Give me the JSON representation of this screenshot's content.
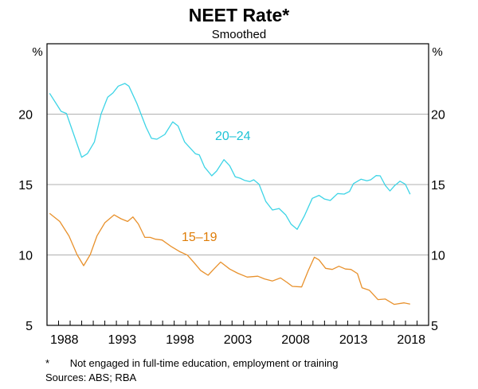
{
  "chart_data": {
    "type": "line",
    "title": "NEET Rate*",
    "subtitle": "Smoothed",
    "ylabel_left": "%",
    "ylabel_right": "%",
    "xlim": [
      1987,
      2020
    ],
    "ylim": [
      5,
      25
    ],
    "yticks": [
      5,
      10,
      15,
      20
    ],
    "xticks": [
      "1988",
      "1993",
      "1998",
      "2003",
      "2008",
      "2013",
      "2018"
    ],
    "grid": true,
    "series": [
      {
        "name": "20–24",
        "color": "#3dd4e6",
        "label_color": "#1fc3d6",
        "points": [
          [
            1987.23,
            21.48
          ],
          [
            1988.22,
            20.2
          ],
          [
            1988.68,
            20.05
          ],
          [
            1989.25,
            18.7
          ],
          [
            1990.0,
            16.94
          ],
          [
            1990.5,
            17.2
          ],
          [
            1991.1,
            18.03
          ],
          [
            1991.67,
            20.0
          ],
          [
            1992.24,
            21.2
          ],
          [
            1992.7,
            21.5
          ],
          [
            1993.16,
            21.99
          ],
          [
            1993.74,
            22.18
          ],
          [
            1994.08,
            21.99
          ],
          [
            1994.77,
            20.76
          ],
          [
            1995.57,
            19.07
          ],
          [
            1996.03,
            18.28
          ],
          [
            1996.5,
            18.22
          ],
          [
            1997.19,
            18.56
          ],
          [
            1997.87,
            19.45
          ],
          [
            1998.33,
            19.16
          ],
          [
            1998.9,
            18.03
          ],
          [
            1999.83,
            17.19
          ],
          [
            2000.17,
            17.1
          ],
          [
            2000.63,
            16.24
          ],
          [
            2001.25,
            15.62
          ],
          [
            2001.67,
            15.96
          ],
          [
            2002.3,
            16.77
          ],
          [
            2002.8,
            16.34
          ],
          [
            2003.28,
            15.55
          ],
          [
            2003.7,
            15.45
          ],
          [
            2004.08,
            15.3
          ],
          [
            2004.54,
            15.21
          ],
          [
            2004.88,
            15.34
          ],
          [
            2005.34,
            15.02
          ],
          [
            2005.92,
            13.8
          ],
          [
            2006.5,
            13.19
          ],
          [
            2007.07,
            13.3
          ],
          [
            2007.64,
            12.85
          ],
          [
            2008.1,
            12.19
          ],
          [
            2008.63,
            11.82
          ],
          [
            2009.25,
            12.76
          ],
          [
            2009.94,
            14.02
          ],
          [
            2010.52,
            14.23
          ],
          [
            2010.98,
            13.98
          ],
          [
            2011.5,
            13.87
          ],
          [
            2012.13,
            14.36
          ],
          [
            2012.7,
            14.32
          ],
          [
            2013.16,
            14.51
          ],
          [
            2013.5,
            15.07
          ],
          [
            2014.15,
            15.38
          ],
          [
            2014.66,
            15.27
          ],
          [
            2015.0,
            15.34
          ],
          [
            2015.46,
            15.64
          ],
          [
            2015.81,
            15.62
          ],
          [
            2016.26,
            14.93
          ],
          [
            2016.66,
            14.55
          ],
          [
            2017.07,
            14.93
          ],
          [
            2017.53,
            15.24
          ],
          [
            2017.99,
            15.02
          ],
          [
            2018.4,
            14.31
          ]
        ]
      },
      {
        "name": "15–19",
        "color": "#e8912c",
        "label_color": "#df7d08",
        "points": [
          [
            1987.23,
            12.95
          ],
          [
            1988.1,
            12.38
          ],
          [
            1988.9,
            11.35
          ],
          [
            1989.6,
            10.03
          ],
          [
            1990.17,
            9.24
          ],
          [
            1990.74,
            10.03
          ],
          [
            1991.32,
            11.35
          ],
          [
            1992.0,
            12.29
          ],
          [
            1992.8,
            12.85
          ],
          [
            1993.4,
            12.57
          ],
          [
            1993.97,
            12.38
          ],
          [
            1994.43,
            12.7
          ],
          [
            1994.9,
            12.2
          ],
          [
            1995.46,
            11.25
          ],
          [
            1995.92,
            11.25
          ],
          [
            1996.38,
            11.12
          ],
          [
            1996.95,
            11.06
          ],
          [
            1997.76,
            10.59
          ],
          [
            1998.45,
            10.25
          ],
          [
            1999.14,
            9.99
          ],
          [
            1999.71,
            9.46
          ],
          [
            2000.29,
            8.89
          ],
          [
            2000.93,
            8.56
          ],
          [
            2001.43,
            9.0
          ],
          [
            2002.01,
            9.5
          ],
          [
            2002.8,
            9.0
          ],
          [
            2003.5,
            8.7
          ],
          [
            2004.31,
            8.43
          ],
          [
            2005.23,
            8.49
          ],
          [
            2005.81,
            8.3
          ],
          [
            2006.5,
            8.15
          ],
          [
            2007.19,
            8.37
          ],
          [
            2007.76,
            8.05
          ],
          [
            2008.22,
            7.77
          ],
          [
            2009.02,
            7.73
          ],
          [
            2009.6,
            8.9
          ],
          [
            2010.12,
            9.84
          ],
          [
            2010.52,
            9.65
          ],
          [
            2011.09,
            9.05
          ],
          [
            2011.67,
            8.97
          ],
          [
            2012.24,
            9.2
          ],
          [
            2012.81,
            9.0
          ],
          [
            2013.28,
            8.97
          ],
          [
            2013.85,
            8.67
          ],
          [
            2014.24,
            7.67
          ],
          [
            2014.88,
            7.49
          ],
          [
            2015.62,
            6.83
          ],
          [
            2016.26,
            6.87
          ],
          [
            2017.02,
            6.49
          ],
          [
            2017.88,
            6.6
          ],
          [
            2018.4,
            6.51
          ]
        ]
      }
    ]
  },
  "footnotes": {
    "marker": "*",
    "note": "Not engaged in full-time education, employment or training",
    "sources": "Sources:   ABS; RBA"
  }
}
